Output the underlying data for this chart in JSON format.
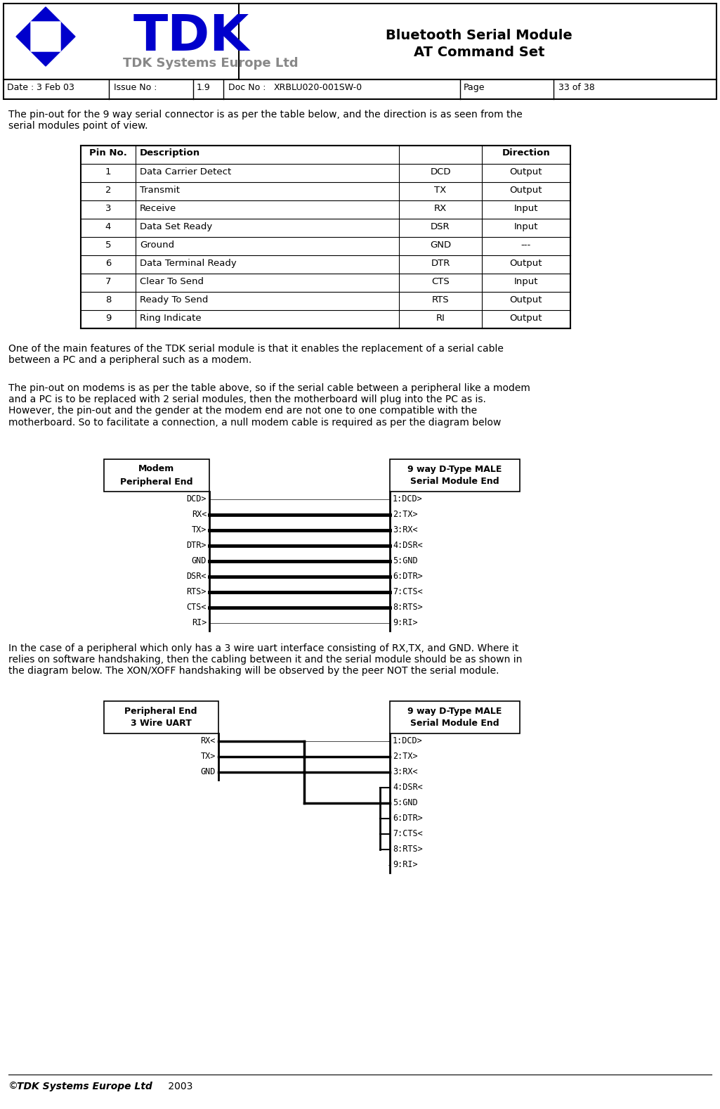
{
  "header_title_line1": "Bluetooth Serial Module",
  "header_title_line2": "AT Command Set",
  "date_label": "Date :",
  "date_value": "3 Feb 03",
  "issue_label": "Issue No :",
  "issue_value": "1.9",
  "doc_label": "Doc No :",
  "doc_value": "XRBLU020-001SW-0",
  "page_label": "Page",
  "page_value": "33 of 38",
  "intro_text": "The pin-out for the 9 way serial connector is as per the table below, and the direction is as seen from the\nserial modules point of view.",
  "table_headers": [
    "Pin No.",
    "Description",
    "",
    "Direction"
  ],
  "table_rows": [
    [
      "1",
      "Data Carrier Detect",
      "DCD",
      "Output"
    ],
    [
      "2",
      "Transmit",
      "TX",
      "Output"
    ],
    [
      "3",
      "Receive",
      "RX",
      "Input"
    ],
    [
      "4",
      "Data Set Ready",
      "DSR",
      "Input"
    ],
    [
      "5",
      "Ground",
      "GND",
      "---"
    ],
    [
      "6",
      "Data Terminal Ready",
      "DTR",
      "Output"
    ],
    [
      "7",
      "Clear To Send",
      "CTS",
      "Input"
    ],
    [
      "8",
      "Ready To Send",
      "RTS",
      "Output"
    ],
    [
      "9",
      "Ring Indicate",
      "RI",
      "Output"
    ]
  ],
  "para1": "One of the main features of the TDK serial module is that it enables the replacement of a serial cable\nbetween a PC and a peripheral such as a modem.",
  "para2": "The pin-out on modems is as per the table above, so if the serial cable between a peripheral like a modem\nand a PC is to be replaced with 2 serial modules, then the motherboard will plug into the PC as is.\nHowever, the pin-out and the gender at the modem end are not one to one compatible with the\nmotherboard. So to facilitate a connection, a null modem cable is required as per the diagram below",
  "diag1_left_title": "Modem\nPeripheral End",
  "diag1_right_title": "9 way D-Type MALE\nSerial Module End",
  "diag1_left_pins": [
    "DCD>",
    "RX<",
    "TX>",
    "DTR>",
    "GND",
    "DSR<",
    "RTS>",
    "CTS<",
    "RI>"
  ],
  "diag1_right_pins": [
    "1:DCD>",
    "2:TX>",
    "3:RX<",
    "4:DSR<",
    "5:GND",
    "6:DTR>",
    "7:CTS<",
    "8:RTS>",
    "9:RI>"
  ],
  "para3": "In the case of a peripheral which only has a 3 wire uart interface consisting of RX,TX, and GND. Where it\nrelies on software handshaking, then the cabling between it and the serial module should be as shown in\nthe diagram below. The XON/XOFF handshaking will be observed by the peer NOT the serial module.",
  "diag2_left_title": "Peripheral End\n3 Wire UART",
  "diag2_right_title": "9 way D-Type MALE\nSerial Module End",
  "diag2_left_pins": [
    "RX<",
    "TX>",
    "GND"
  ],
  "diag2_right_pins": [
    "1:DCD>",
    "2:TX>",
    "3:RX<",
    "4:DSR<",
    "5:GND",
    "6:DTR>",
    "7:CTS<",
    "8:RTS>",
    "9:RI>"
  ],
  "footer_text": "© TDK Systems Europe Ltd 2003",
  "bg_color": "#ffffff",
  "text_color": "#000000",
  "tdk_blue": "#0000cc",
  "tdk_gray": "#888888"
}
